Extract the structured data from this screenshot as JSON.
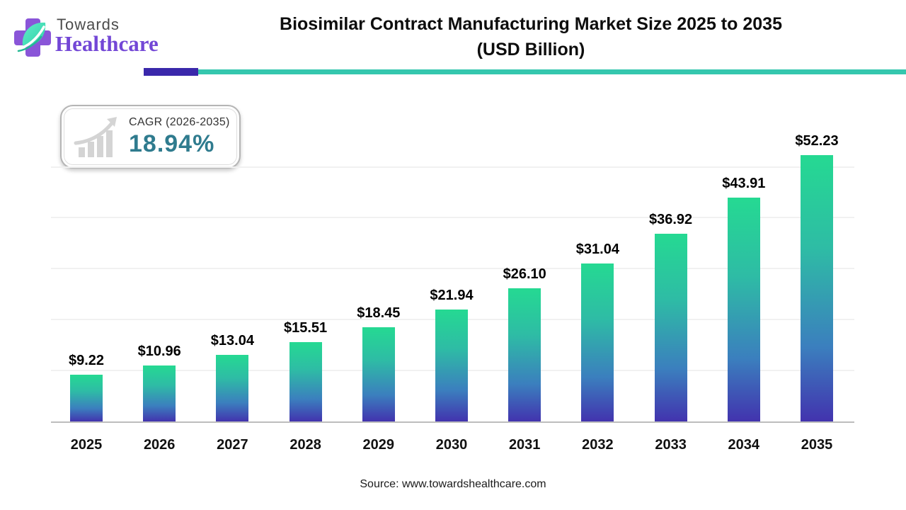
{
  "logo": {
    "towards": "Towards",
    "healthcare": "Healthcare"
  },
  "header": {
    "title_line1": "Biosimilar Contract Manufacturing Market Size 2025 to 2035",
    "title_line2": "(USD Billion)"
  },
  "cagr_badge": {
    "label": "CAGR (2026-2035)",
    "value": "18.94%"
  },
  "chart_data": {
    "type": "bar",
    "title": "Biosimilar Contract Manufacturing Market Size 2025 to 2035 (USD Billion)",
    "categories": [
      "2025",
      "2026",
      "2027",
      "2028",
      "2029",
      "2030",
      "2031",
      "2032",
      "2033",
      "2034",
      "2035"
    ],
    "values": [
      9.22,
      10.96,
      13.04,
      15.51,
      18.45,
      21.94,
      26.1,
      31.04,
      36.92,
      43.91,
      52.23
    ],
    "labels": [
      "$9.22",
      "$10.96",
      "$13.04",
      "$15.51",
      "$18.45",
      "$21.94",
      "$26.10",
      "$31.04",
      "$36.92",
      "$43.91",
      "$52.23"
    ],
    "xlabel": "",
    "ylabel": "",
    "ylim": [
      0,
      55
    ],
    "gridlines": [
      10,
      20,
      30,
      40,
      50
    ],
    "grid": "horizontal-light",
    "legend": "none",
    "bar_gradient": [
      "#25d992",
      "#2ebca5",
      "#3b7fbe",
      "#4233ae"
    ]
  },
  "footer": {
    "source": "Source: www.towardshealthcare.com"
  },
  "colors": {
    "rule_purple": "#3a28ab",
    "rule_teal": "#35c7ae",
    "cagr_value_teal": "#2f7b8e",
    "logo_purple": "#7347d6",
    "logo_gray": "#4b4b4b",
    "axis_line": "#bdbdbd",
    "gridline": "#f1f1f1"
  }
}
